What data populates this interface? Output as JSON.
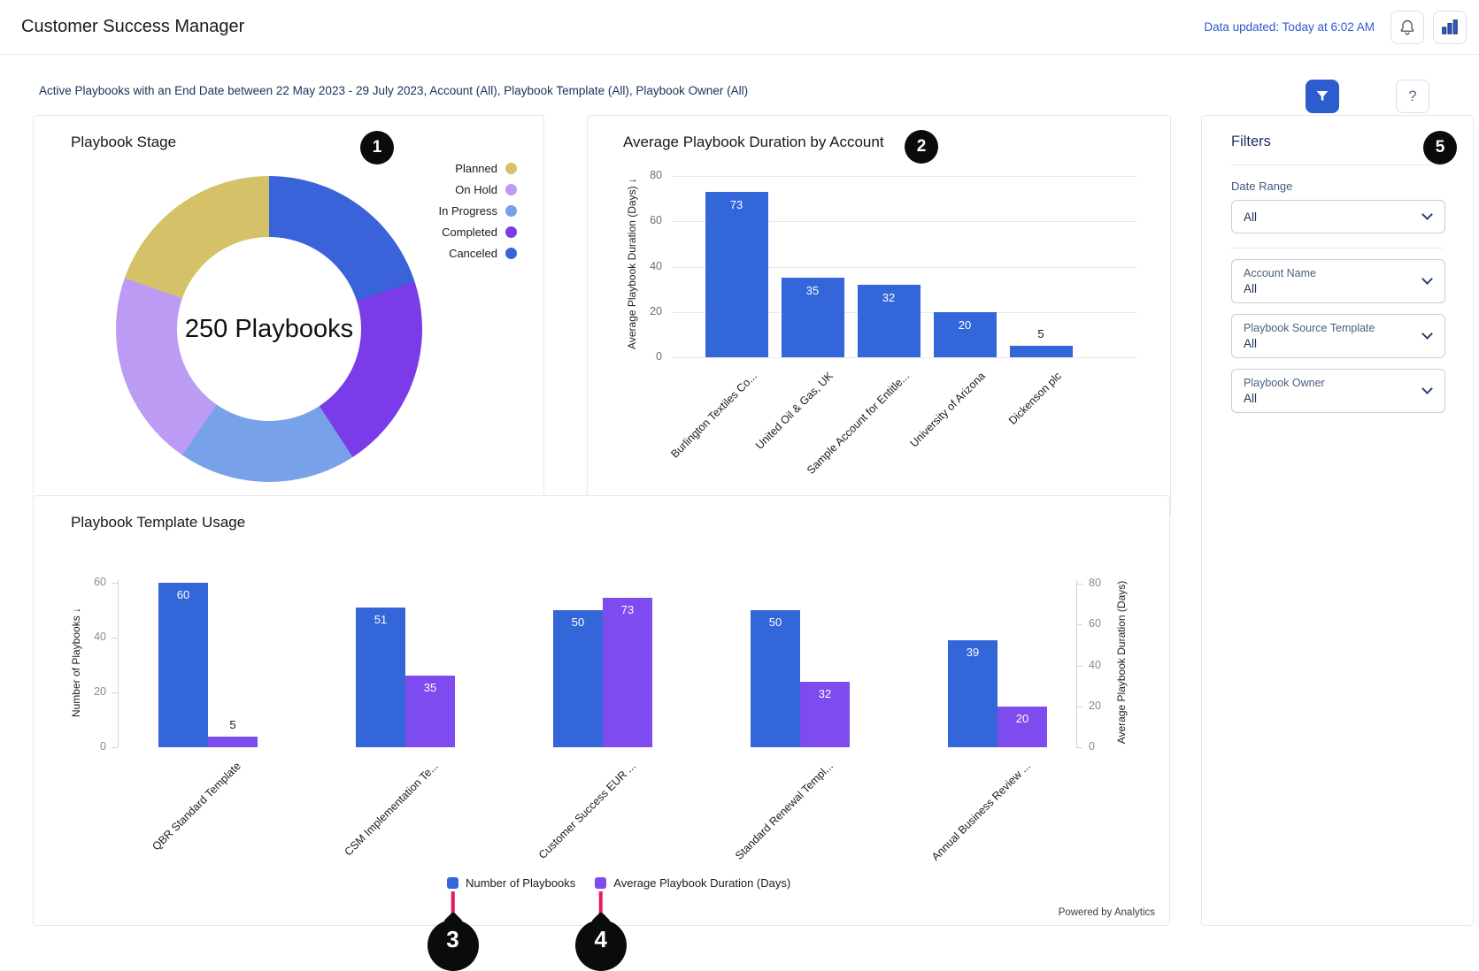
{
  "header": {
    "title": "Customer Success Manager",
    "updated": "Data updated: Today at 6:02 AM"
  },
  "subheader": {
    "summary": "Active Playbooks with an End Date between 22 May 2023 - 29 July 2023, Account (All), Playbook Template (All), Playbook Owner (All)",
    "help_label": "?"
  },
  "badges": {
    "b1": "1",
    "b2": "2",
    "b3": "3",
    "b4": "4",
    "b5": "5"
  },
  "footer_note": "Powered by Analytics",
  "colors": {
    "accent_blue": "#2B5DCF",
    "link_blue": "#2F5ACB",
    "navy": "#16325C",
    "bar_blue": "#3366D9",
    "bar_purple": "#7D4BEE",
    "connector": "#E8185E",
    "badge_bg": "#0B0B0B"
  },
  "chart_data": [
    {
      "type": "pie",
      "title": "Playbook Stage",
      "center_label": "250 Playbooks",
      "total": 250,
      "legend_position": "right",
      "segments": [
        {
          "label": "Planned",
          "value": 49,
          "color": "#D5C167"
        },
        {
          "label": "On Hold",
          "value": 52,
          "color": "#BC9BF4"
        },
        {
          "label": "In Progress",
          "value": 47,
          "color": "#77A2E9"
        },
        {
          "label": "Completed",
          "value": 52,
          "color": "#7A3BE8"
        },
        {
          "label": "Canceled",
          "value": 50,
          "color": "#3A62D9"
        }
      ]
    },
    {
      "type": "bar",
      "title": "Average Playbook Duration by Account",
      "ylabel": "Average Playbook Duration (Days) ↓",
      "xlabel": "",
      "ylim": [
        0,
        80
      ],
      "yticks": [
        0,
        20,
        40,
        60,
        80
      ],
      "grid": true,
      "bar_color": "#3366D9",
      "categories": [
        "Burlington Textiles Co...",
        "United Oil & Gas, UK",
        "Sample Account for Entitle...",
        "University of Arizona",
        "Dickenson plc"
      ],
      "values": [
        73,
        35,
        32,
        20,
        5
      ]
    },
    {
      "type": "bar",
      "title": "Playbook Template Usage",
      "ylabel_left": "Number of Playbooks ↓",
      "ylabel_right": "Average Playbook Duration (Days)",
      "ylim_left": [
        0,
        60
      ],
      "yticks_left": [
        0,
        20,
        40,
        60
      ],
      "ylim_right": [
        0,
        80
      ],
      "yticks_right": [
        0,
        20,
        40,
        60,
        80
      ],
      "grid": false,
      "legend_position": "bottom",
      "categories": [
        "QBR Standard Template",
        "CSM Implementation Te...",
        "Customer Success EUR ...",
        "Standard Renewal Templ...",
        "Annual Business Review ..."
      ],
      "series": [
        {
          "name": "Number of Playbooks",
          "axis": "left",
          "color": "#3366D9",
          "values": [
            60,
            51,
            50,
            50,
            39
          ]
        },
        {
          "name": "Average Playbook Duration (Days)",
          "axis": "right",
          "color": "#7D4BEE",
          "values": [
            5,
            35,
            73,
            32,
            20
          ]
        }
      ]
    }
  ],
  "filters": {
    "title": "Filters",
    "fields": [
      {
        "label": "Date Range",
        "value": "All"
      },
      {
        "label": "Account Name",
        "value": "All"
      },
      {
        "label": "Playbook Source Template",
        "value": "All"
      },
      {
        "label": "Playbook Owner",
        "value": "All"
      }
    ]
  }
}
